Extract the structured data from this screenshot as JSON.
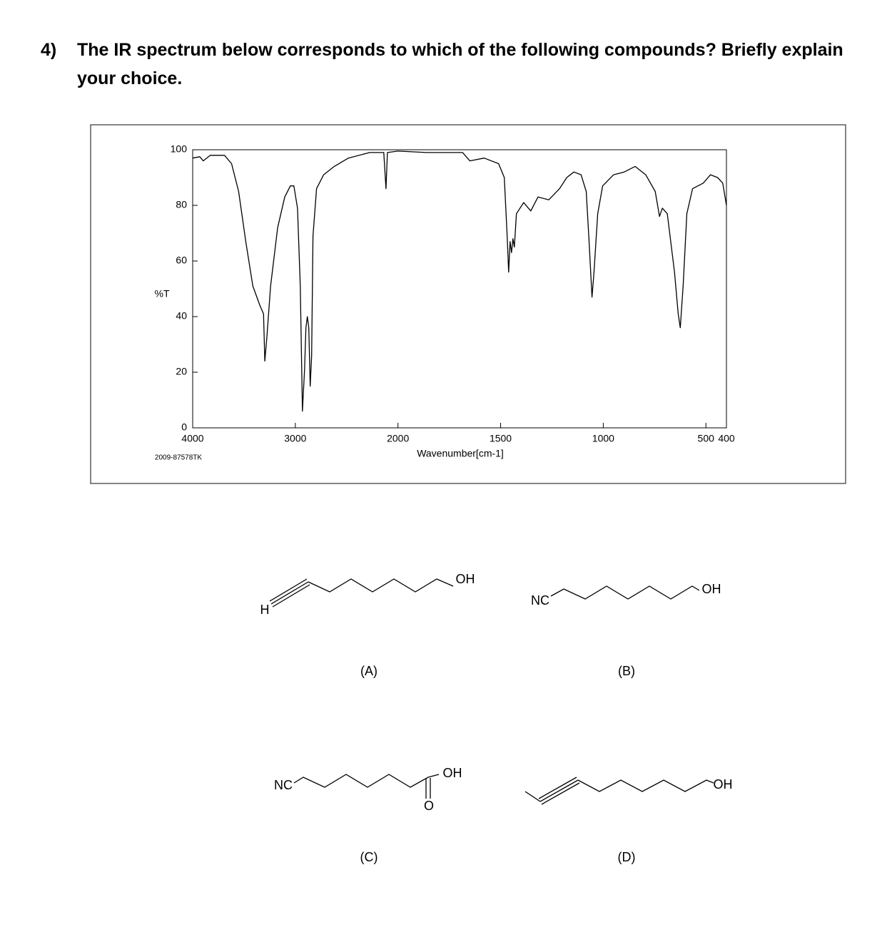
{
  "question": {
    "number": "4)",
    "text": "The IR spectrum below corresponds to which of the following compounds? Briefly explain your choice."
  },
  "chart_data": {
    "type": "line",
    "x_label": "Wavenumber[cm-1]",
    "y_label": "%T",
    "code": "2009-87578TK",
    "xlim": [
      4000,
      400
    ],
    "ylim": [
      0,
      100
    ],
    "x_scale_break": 2000,
    "xticks": [
      4000,
      3000,
      2000,
      1500,
      1000,
      500,
      400
    ],
    "yticks": [
      0,
      20,
      40,
      60,
      80,
      100
    ],
    "x": [
      4000,
      3931,
      3897,
      3828,
      3690,
      3621,
      3552,
      3483,
      3414,
      3345,
      3310,
      3297,
      3276,
      3241,
      3172,
      3103,
      3048,
      3014,
      2979,
      2952,
      2931,
      2910,
      2897,
      2883,
      2869,
      2855,
      2841,
      2828,
      2793,
      2724,
      2621,
      2483,
      2276,
      2138,
      2117,
      2103,
      2000,
      1860,
      1685,
      1650,
      1580,
      1510,
      1482,
      1468,
      1461,
      1454,
      1447,
      1440,
      1433,
      1423,
      1388,
      1353,
      1318,
      1265,
      1213,
      1178,
      1143,
      1108,
      1083,
      1069,
      1055,
      1045,
      1027,
      1003,
      950,
      898,
      845,
      793,
      747,
      726,
      712,
      688,
      653,
      635,
      625,
      611,
      593,
      565,
      513,
      478,
      443,
      418,
      400
    ],
    "series": [
      {
        "color": "#000000",
        "values": [
          97,
          97.5,
          96,
          98,
          98,
          95,
          85,
          67,
          51,
          44,
          41,
          24,
          33,
          51,
          72,
          83,
          87,
          87,
          79,
          51,
          6,
          21,
          36,
          40,
          36,
          15,
          26,
          69,
          86,
          91,
          94,
          97,
          99,
          99,
          86,
          99,
          99.5,
          99,
          99,
          96,
          97,
          95,
          90,
          69,
          56,
          67,
          63,
          68,
          65,
          77,
          81,
          78,
          83,
          82,
          86,
          90,
          92,
          91,
          85,
          67,
          47,
          56,
          77,
          87,
          91,
          92,
          94,
          91,
          85,
          76,
          79,
          77,
          56,
          41,
          36,
          51,
          77,
          86,
          88,
          91,
          90,
          88,
          80
        ]
      }
    ]
  },
  "structures": [
    {
      "label": "(A)",
      "groups": [
        "H",
        "OH"
      ]
    },
    {
      "label": "(B)",
      "groups": [
        "NC",
        "OH"
      ]
    },
    {
      "label": "(C)",
      "groups": [
        "NC",
        "OH",
        "O"
      ]
    },
    {
      "label": "(D)",
      "groups": [
        "OH"
      ]
    }
  ]
}
